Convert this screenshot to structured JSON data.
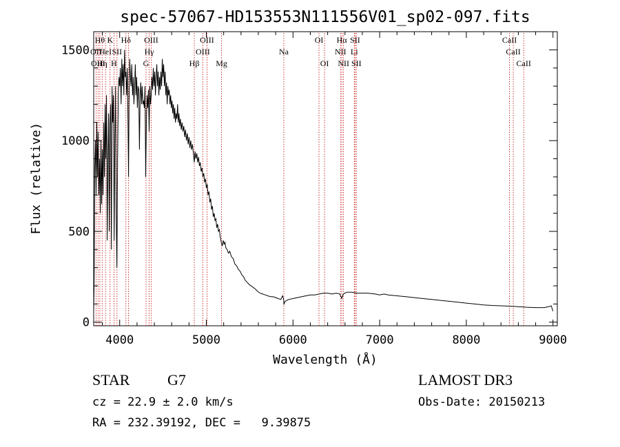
{
  "info": {
    "object_class": "STAR",
    "subclass": "G7",
    "survey": "LAMOST DR3",
    "redshift_line": "cz = 22.9 ± 2.0 km/s",
    "obs_date": "Obs-Date: 20150213",
    "coords": "RA = 232.39192, DEC =   9.39875"
  },
  "chart_data": {
    "type": "line",
    "title": "spec-57067-HD153553N111556V01_sp02-097.fits",
    "xlabel": "Wavelength (Å)",
    "ylabel": "Flux (relative)",
    "xlim": [
      3700,
      9050
    ],
    "ylim": [
      -20,
      1600
    ],
    "x_ticks": [
      4000,
      5000,
      6000,
      7000,
      8000,
      9000
    ],
    "y_ticks": [
      0,
      500,
      1000,
      1500
    ],
    "line_color": "#000000",
    "marker_color": "#c00000",
    "series": [
      {
        "values": [
          [
            3700,
            60
          ],
          [
            3705,
            200
          ],
          [
            3712,
            850
          ],
          [
            3720,
            1000
          ],
          [
            3728,
            700
          ],
          [
            3736,
            1100
          ],
          [
            3744,
            800
          ],
          [
            3752,
            1050
          ],
          [
            3760,
            700
          ],
          [
            3768,
            900
          ],
          [
            3776,
            600
          ],
          [
            3784,
            1000
          ],
          [
            3792,
            650
          ],
          [
            3800,
            950
          ],
          [
            3808,
            700
          ],
          [
            3816,
            1100
          ],
          [
            3824,
            800
          ],
          [
            3832,
            1200
          ],
          [
            3840,
            900
          ],
          [
            3848,
            1250
          ],
          [
            3856,
            450
          ],
          [
            3864,
            900
          ],
          [
            3872,
            1150
          ],
          [
            3880,
            500
          ],
          [
            3888,
            1100
          ],
          [
            3896,
            1200
          ],
          [
            3904,
            400
          ],
          [
            3912,
            1300
          ],
          [
            3920,
            1100
          ],
          [
            3928,
            1250
          ],
          [
            3936,
            450
          ],
          [
            3944,
            1000
          ],
          [
            3952,
            1300
          ],
          [
            3960,
            600
          ],
          [
            3968,
            300
          ],
          [
            3976,
            900
          ],
          [
            3984,
            1250
          ],
          [
            3992,
            1350
          ],
          [
            4000,
            1300
          ],
          [
            4008,
            1400
          ],
          [
            4016,
            1200
          ],
          [
            4024,
            1450
          ],
          [
            4032,
            1300
          ],
          [
            4040,
            1420
          ],
          [
            4048,
            1250
          ],
          [
            4056,
            1500
          ],
          [
            4064,
            1350
          ],
          [
            4072,
            1380
          ],
          [
            4080,
            1250
          ],
          [
            4088,
            1400
          ],
          [
            4096,
            1100
          ],
          [
            4102,
            800
          ],
          [
            4108,
            1200
          ],
          [
            4116,
            1450
          ],
          [
            4124,
            1350
          ],
          [
            4132,
            1300
          ],
          [
            4140,
            1420
          ],
          [
            4148,
            1250
          ],
          [
            4156,
            1350
          ],
          [
            4164,
            1200
          ],
          [
            4172,
            1300
          ],
          [
            4180,
            1420
          ],
          [
            4188,
            1250
          ],
          [
            4196,
            1350
          ],
          [
            4204,
            1180
          ],
          [
            4212,
            1300
          ],
          [
            4220,
            1280
          ],
          [
            4228,
            950
          ],
          [
            4236,
            1250
          ],
          [
            4244,
            1320
          ],
          [
            4252,
            1200
          ],
          [
            4260,
            1300
          ],
          [
            4268,
            1200
          ],
          [
            4276,
            1220
          ],
          [
            4284,
            1180
          ],
          [
            4292,
            1300
          ],
          [
            4300,
            800
          ],
          [
            4308,
            1100
          ],
          [
            4316,
            1250
          ],
          [
            4324,
            1180
          ],
          [
            4332,
            1280
          ],
          [
            4340,
            1050
          ],
          [
            4348,
            1300
          ],
          [
            4356,
            1200
          ],
          [
            4364,
            1250
          ],
          [
            4372,
            1350
          ],
          [
            4380,
            1280
          ],
          [
            4388,
            1400
          ],
          [
            4396,
            1300
          ],
          [
            4404,
            1380
          ],
          [
            4412,
            1250
          ],
          [
            4420,
            1350
          ],
          [
            4428,
            1420
          ],
          [
            4436,
            1300
          ],
          [
            4444,
            1380
          ],
          [
            4452,
            1250
          ],
          [
            4460,
            1350
          ],
          [
            4468,
            1280
          ],
          [
            4476,
            1380
          ],
          [
            4484,
            1300
          ],
          [
            4492,
            1450
          ],
          [
            4500,
            1350
          ],
          [
            4508,
            1420
          ],
          [
            4516,
            1300
          ],
          [
            4524,
            1380
          ],
          [
            4532,
            1250
          ],
          [
            4540,
            1320
          ],
          [
            4548,
            1200
          ],
          [
            4556,
            1300
          ],
          [
            4564,
            1250
          ],
          [
            4572,
            1280
          ],
          [
            4580,
            1200
          ],
          [
            4588,
            1250
          ],
          [
            4596,
            1180
          ],
          [
            4604,
            1220
          ],
          [
            4612,
            1150
          ],
          [
            4620,
            1200
          ],
          [
            4628,
            1120
          ],
          [
            4636,
            1180
          ],
          [
            4644,
            1100
          ],
          [
            4652,
            1150
          ],
          [
            4660,
            1120
          ],
          [
            4668,
            1200
          ],
          [
            4676,
            1100
          ],
          [
            4684,
            1150
          ],
          [
            4692,
            1080
          ],
          [
            4700,
            1120
          ],
          [
            4710,
            1060
          ],
          [
            4720,
            1100
          ],
          [
            4730,
            1050
          ],
          [
            4740,
            1080
          ],
          [
            4750,
            1020
          ],
          [
            4760,
            1060
          ],
          [
            4770,
            1000
          ],
          [
            4780,
            1040
          ],
          [
            4790,
            980
          ],
          [
            4800,
            1020
          ],
          [
            4810,
            960
          ],
          [
            4820,
            1000
          ],
          [
            4830,
            950
          ],
          [
            4840,
            980
          ],
          [
            4850,
            930
          ],
          [
            4861,
            880
          ],
          [
            4870,
            940
          ],
          [
            4880,
            900
          ],
          [
            4890,
            930
          ],
          [
            4900,
            880
          ],
          [
            4910,
            910
          ],
          [
            4920,
            860
          ],
          [
            4930,
            880
          ],
          [
            4940,
            830
          ],
          [
            4950,
            850
          ],
          [
            4960,
            800
          ],
          [
            4970,
            820
          ],
          [
            4980,
            770
          ],
          [
            4990,
            790
          ],
          [
            5000,
            740
          ],
          [
            5010,
            760
          ],
          [
            5020,
            700
          ],
          [
            5030,
            720
          ],
          [
            5040,
            660
          ],
          [
            5050,
            680
          ],
          [
            5060,
            620
          ],
          [
            5070,
            640
          ],
          [
            5080,
            580
          ],
          [
            5090,
            600
          ],
          [
            5100,
            560
          ],
          [
            5110,
            570
          ],
          [
            5120,
            520
          ],
          [
            5130,
            540
          ],
          [
            5140,
            500
          ],
          [
            5150,
            510
          ],
          [
            5160,
            470
          ],
          [
            5172,
            440
          ],
          [
            5183,
            420
          ],
          [
            5195,
            450
          ],
          [
            5205,
            430
          ],
          [
            5215,
            440
          ],
          [
            5225,
            410
          ],
          [
            5240,
            400
          ],
          [
            5255,
            380
          ],
          [
            5270,
            390
          ],
          [
            5290,
            360
          ],
          [
            5310,
            350
          ],
          [
            5330,
            320
          ],
          [
            5350,
            310
          ],
          [
            5370,
            290
          ],
          [
            5390,
            280
          ],
          [
            5410,
            260
          ],
          [
            5430,
            250
          ],
          [
            5450,
            230
          ],
          [
            5470,
            220
          ],
          [
            5500,
            205
          ],
          [
            5530,
            195
          ],
          [
            5560,
            185
          ],
          [
            5590,
            170
          ],
          [
            5620,
            160
          ],
          [
            5650,
            155
          ],
          [
            5680,
            150
          ],
          [
            5710,
            145
          ],
          [
            5740,
            140
          ],
          [
            5770,
            140
          ],
          [
            5800,
            135
          ],
          [
            5830,
            130
          ],
          [
            5860,
            125
          ],
          [
            5880,
            145
          ],
          [
            5890,
            130
          ],
          [
            5896,
            100
          ],
          [
            5910,
            115
          ],
          [
            5950,
            125
          ],
          [
            6000,
            130
          ],
          [
            6050,
            135
          ],
          [
            6100,
            140
          ],
          [
            6150,
            145
          ],
          [
            6200,
            150
          ],
          [
            6250,
            150
          ],
          [
            6300,
            155
          ],
          [
            6350,
            160
          ],
          [
            6400,
            160
          ],
          [
            6450,
            155
          ],
          [
            6500,
            160
          ],
          [
            6540,
            155
          ],
          [
            6563,
            130
          ],
          [
            6580,
            155
          ],
          [
            6620,
            165
          ],
          [
            6680,
            165
          ],
          [
            6740,
            160
          ],
          [
            6800,
            160
          ],
          [
            6850,
            160
          ],
          [
            6900,
            158
          ],
          [
            6950,
            155
          ],
          [
            7000,
            150
          ],
          [
            7050,
            155
          ],
          [
            7100,
            150
          ],
          [
            7200,
            145
          ],
          [
            7300,
            140
          ],
          [
            7400,
            135
          ],
          [
            7500,
            130
          ],
          [
            7600,
            125
          ],
          [
            7700,
            120
          ],
          [
            7800,
            115
          ],
          [
            7900,
            110
          ],
          [
            8000,
            105
          ],
          [
            8100,
            100
          ],
          [
            8200,
            95
          ],
          [
            8300,
            92
          ],
          [
            8400,
            90
          ],
          [
            8500,
            88
          ],
          [
            8600,
            85
          ],
          [
            8700,
            82
          ],
          [
            8800,
            80
          ],
          [
            8900,
            80
          ],
          [
            8950,
            85
          ],
          [
            8980,
            90
          ],
          [
            9000,
            60
          ]
        ]
      }
    ],
    "line_markers": [
      {
        "wl": 3727,
        "label": "OII",
        "row": 1
      },
      {
        "wl": 3750,
        "label": "OIII",
        "row": 2
      },
      {
        "wl": 3771,
        "label": "Hθ",
        "row": 0
      },
      {
        "wl": 3798,
        "label": "Hη",
        "row": 2
      },
      {
        "wl": 3836,
        "label": "HeI",
        "row": 1
      },
      {
        "wl": 3889,
        "label": "K",
        "row": 0
      },
      {
        "wl": 3934,
        "label": "H",
        "row": 2
      },
      {
        "wl": 3969,
        "label": "SII",
        "row": 1
      },
      {
        "wl": 4072,
        "label": "Hδ",
        "row": 0
      },
      {
        "wl": 4102,
        "label": "",
        "row": 0
      },
      {
        "wl": 4304,
        "label": "G",
        "row": 2
      },
      {
        "wl": 4341,
        "label": "Hγ",
        "row": 1
      },
      {
        "wl": 4363,
        "label": "OIII",
        "row": 0
      },
      {
        "wl": 4861,
        "label": "Hβ",
        "row": 2
      },
      {
        "wl": 4959,
        "label": "OIII",
        "row": 1
      },
      {
        "wl": 5007,
        "label": "OIII",
        "row": 0
      },
      {
        "wl": 5175,
        "label": "Mg",
        "row": 2
      },
      {
        "wl": 5894,
        "label": "Na",
        "row": 1
      },
      {
        "wl": 6300,
        "label": "OI",
        "row": 0
      },
      {
        "wl": 6364,
        "label": "OI",
        "row": 2
      },
      {
        "wl": 6548,
        "label": "NII",
        "row": 1
      },
      {
        "wl": 6563,
        "label": "Hα",
        "row": 0
      },
      {
        "wl": 6583,
        "label": "NII",
        "row": 2
      },
      {
        "wl": 6707,
        "label": "Li",
        "row": 1
      },
      {
        "wl": 6716,
        "label": "SII",
        "row": 0
      },
      {
        "wl": 6731,
        "label": "SII",
        "row": 2
      },
      {
        "wl": 8498,
        "label": "CaII",
        "row": 0
      },
      {
        "wl": 8542,
        "label": "CaII",
        "row": 1
      },
      {
        "wl": 8662,
        "label": "CaII",
        "row": 2
      }
    ]
  }
}
